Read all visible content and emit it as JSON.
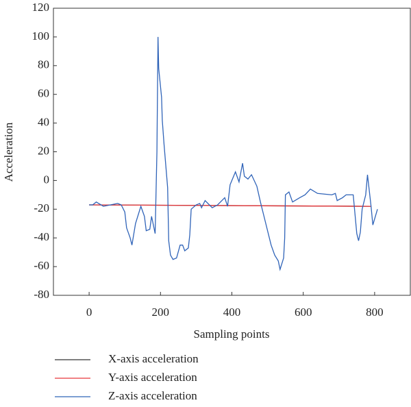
{
  "chart_data": {
    "type": "line",
    "xlabel": "Sampling points",
    "ylabel": "Acceleration",
    "xlim": [
      -100,
      900
    ],
    "xticks": [
      0,
      200,
      400,
      600,
      800
    ],
    "ylim": [
      -80,
      120
    ],
    "yticks": [
      -80,
      -60,
      -40,
      -20,
      0,
      20,
      40,
      60,
      80,
      100,
      120
    ],
    "series": [
      {
        "name": "X-axis acceleration",
        "color": "#333333",
        "x": [
          0,
          790
        ],
        "values": [
          -17,
          -18
        ]
      },
      {
        "name": "Y-axis acceleration",
        "color": "#e8363a",
        "x": [
          0,
          790
        ],
        "values": [
          -17,
          -18
        ]
      },
      {
        "name": "Z-axis acceleration",
        "color": "#2f63b8",
        "x": [
          0,
          10,
          20,
          40,
          60,
          80,
          90,
          100,
          105,
          115,
          120,
          130,
          145,
          155,
          160,
          170,
          175,
          185,
          190,
          193,
          195,
          203,
          205,
          210,
          215,
          220,
          223,
          228,
          235,
          245,
          255,
          262,
          268,
          278,
          282,
          286,
          300,
          310,
          315,
          325,
          345,
          360,
          380,
          388,
          395,
          410,
          420,
          430,
          435,
          445,
          455,
          470,
          480,
          490,
          500,
          510,
          520,
          530,
          535,
          545,
          548,
          550,
          560,
          570,
          590,
          605,
          620,
          640,
          680,
          690,
          695,
          710,
          720,
          740,
          750,
          755,
          760,
          765,
          775,
          780,
          790,
          795,
          808
        ],
        "values": [
          -17,
          -17,
          -15,
          -18,
          -17,
          -16,
          -17,
          -22,
          -33,
          -40,
          -45,
          -30,
          -18,
          -25,
          -35,
          -34,
          -25,
          -37,
          20,
          100,
          78,
          58,
          42,
          25,
          10,
          -5,
          -42,
          -52,
          -55,
          -54,
          -45,
          -45,
          -49,
          -47,
          -38,
          -20,
          -17,
          -16,
          -19,
          -14,
          -19,
          -17,
          -12,
          -18,
          -3,
          6,
          -1,
          12,
          3,
          1,
          4,
          -4,
          -15,
          -25,
          -35,
          -45,
          -52,
          -56,
          -62,
          -54,
          -40,
          -10,
          -8,
          -15,
          -12,
          -10,
          -6,
          -9,
          -10,
          -9,
          -14,
          -12,
          -10,
          -10,
          -37,
          -42,
          -36,
          -20,
          -10,
          4,
          -18,
          -31,
          -20
        ]
      }
    ]
  }
}
